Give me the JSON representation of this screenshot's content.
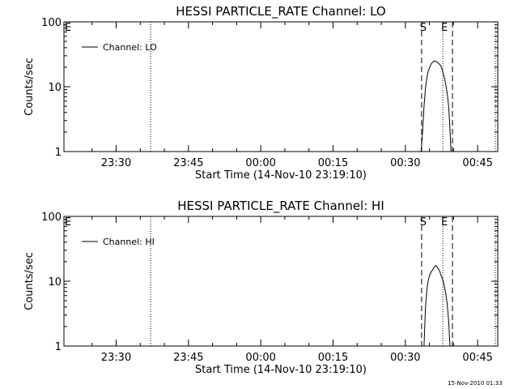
{
  "footer": {
    "timestamp": "15-Nov-2010 01:33"
  },
  "chart_data": [
    {
      "type": "line",
      "title": "HESSI PARTICLE_RATE Channel: LO",
      "xlabel": "Start Time (14-Nov-10 23:19:10)",
      "ylabel": "Counts/sec",
      "yscale": "log",
      "ylim": [
        1,
        100
      ],
      "xlim_minutes_from_start": [
        0,
        90
      ],
      "x_ticks": [
        {
          "label": "23:30",
          "min": 10.83
        },
        {
          "label": "23:45",
          "min": 25.83
        },
        {
          "label": "00:00",
          "min": 40.83
        },
        {
          "label": "00:15",
          "min": 55.83
        },
        {
          "label": "00:30",
          "min": 70.83
        },
        {
          "label": "00:45",
          "min": 85.83
        }
      ],
      "y_ticks": [
        {
          "label": "1",
          "value": 1
        },
        {
          "label": "10",
          "value": 10
        },
        {
          "label": "100",
          "value": 100
        }
      ],
      "legend": {
        "entries": [
          "Channel: LO"
        ],
        "position": "top-left"
      },
      "vlines": [
        {
          "min": 18.0,
          "style": "dotted",
          "label": "E",
          "label_side": "left-edge"
        },
        {
          "min": 74.2,
          "style": "dashed",
          "label": "S"
        },
        {
          "min": 78.6,
          "style": "dotted",
          "label": "E"
        },
        {
          "min": 80.6,
          "style": "dashed"
        },
        {
          "min": 89.5,
          "style": "dotted"
        }
      ],
      "series": [
        {
          "name": "Channel: LO",
          "x_min": [
            74.1,
            74.4,
            74.7,
            75.0,
            75.3,
            75.6,
            75.9,
            76.2,
            76.5,
            76.8,
            77.1,
            77.4,
            77.7,
            78.0,
            78.3,
            78.6,
            78.9,
            79.2,
            79.5,
            79.8,
            80.0,
            80.2,
            80.3
          ],
          "values": [
            1.0,
            2.0,
            5.0,
            9.5,
            14.0,
            17.5,
            20.0,
            22.5,
            24.0,
            25.0,
            24.5,
            24.0,
            23.0,
            22.0,
            20.0,
            17.0,
            14.0,
            11.0,
            8.0,
            5.0,
            3.0,
            1.5,
            1.0
          ]
        }
      ]
    },
    {
      "type": "line",
      "title": "HESSI PARTICLE_RATE Channel: HI",
      "xlabel": "Start Time (14-Nov-10 23:19:10)",
      "ylabel": "Counts/sec",
      "yscale": "log",
      "ylim": [
        1,
        100
      ],
      "xlim_minutes_from_start": [
        0,
        90
      ],
      "x_ticks": [
        {
          "label": "23:30",
          "min": 10.83
        },
        {
          "label": "23:45",
          "min": 25.83
        },
        {
          "label": "00:00",
          "min": 40.83
        },
        {
          "label": "00:15",
          "min": 55.83
        },
        {
          "label": "00:30",
          "min": 70.83
        },
        {
          "label": "00:45",
          "min": 85.83
        }
      ],
      "y_ticks": [
        {
          "label": "1",
          "value": 1
        },
        {
          "label": "10",
          "value": 10
        },
        {
          "label": "100",
          "value": 100
        }
      ],
      "legend": {
        "entries": [
          "Channel: HI"
        ],
        "position": "top-left"
      },
      "vlines": [
        {
          "min": 18.0,
          "style": "dotted",
          "label": "E",
          "label_side": "left-edge"
        },
        {
          "min": 74.2,
          "style": "dashed",
          "label": "S"
        },
        {
          "min": 78.6,
          "style": "dotted",
          "label": "E"
        },
        {
          "min": 80.6,
          "style": "dashed"
        },
        {
          "min": 89.5,
          "style": "dotted"
        }
      ],
      "series": [
        {
          "name": "Channel: HI",
          "x_min": [
            74.7,
            75.0,
            75.3,
            75.6,
            75.9,
            76.2,
            76.5,
            76.8,
            77.1,
            77.4,
            77.7,
            78.0,
            78.3,
            78.6,
            78.9,
            79.2,
            79.5,
            79.7,
            79.9,
            80.0,
            80.1
          ],
          "values": [
            1.0,
            4.0,
            7.5,
            10.5,
            12.5,
            14.0,
            15.0,
            16.5,
            17.5,
            16.5,
            15.5,
            14.0,
            12.0,
            10.5,
            8.5,
            6.5,
            4.5,
            3.0,
            2.0,
            1.3,
            1.0
          ]
        }
      ]
    }
  ]
}
